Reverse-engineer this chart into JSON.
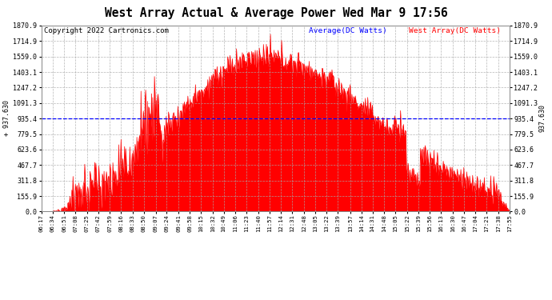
{
  "title": "West Array Actual & Average Power Wed Mar 9 17:56",
  "copyright": "Copyright 2022 Cartronics.com",
  "legend_avg": "Average(DC Watts)",
  "legend_west": "West Array(DC Watts)",
  "avg_value": 937.63,
  "ymin": 0.0,
  "ymax": 1870.9,
  "yticks": [
    0.0,
    155.9,
    311.8,
    467.7,
    623.6,
    779.5,
    935.4,
    1091.3,
    1247.2,
    1403.1,
    1559.0,
    1714.9,
    1870.9
  ],
  "ytick_labels": [
    "0.0",
    "155.9",
    "311.8",
    "467.7",
    "623.6",
    "779.5",
    "935.4",
    "1091.3",
    "1247.2",
    "1403.1",
    "1559.0",
    "1714.9",
    "1870.9"
  ],
  "bg_color": "#ffffff",
  "plot_bg_color": "#ffffff",
  "grid_color": "#aaaaaa",
  "fill_color": "#ff0000",
  "line_color": "#ff0000",
  "avg_line_color": "#0000ff",
  "title_color": "#000000",
  "copyright_color": "#000000",
  "legend_avg_color": "#0000ff",
  "legend_west_color": "#ff0000",
  "xtick_labels": [
    "06:17",
    "06:34",
    "06:51",
    "07:08",
    "07:25",
    "07:42",
    "07:59",
    "08:16",
    "08:33",
    "08:50",
    "09:07",
    "09:24",
    "09:41",
    "09:58",
    "10:15",
    "10:32",
    "10:49",
    "11:06",
    "11:23",
    "11:40",
    "11:57",
    "12:14",
    "12:31",
    "12:48",
    "13:05",
    "13:22",
    "13:39",
    "13:57",
    "14:14",
    "14:31",
    "14:48",
    "15:05",
    "15:22",
    "15:39",
    "15:56",
    "16:13",
    "16:30",
    "16:47",
    "17:04",
    "17:21",
    "17:38",
    "17:55"
  ],
  "side_label": "937.630",
  "side_label_with_arrow": "+ 937.630"
}
